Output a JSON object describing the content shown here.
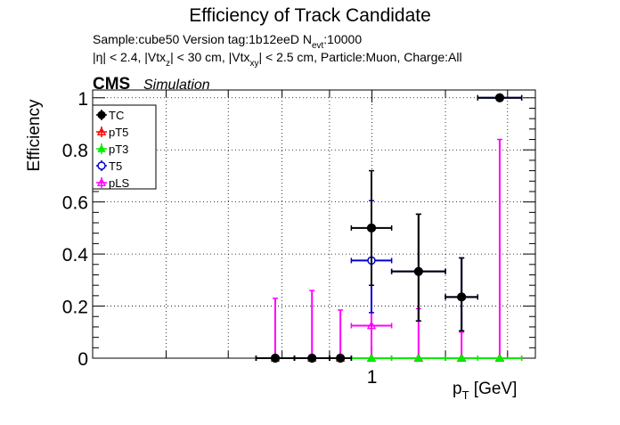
{
  "header": {
    "title": "Efficiency of Track Candidate",
    "line1_sample": "Sample:cube50   Version tag:1b12eeD  N",
    "line1_sub": "evt",
    "line1_tail": ":10000",
    "line2": [
      {
        "t": "|η| < 2.4, |Vtx",
        "sub": false
      },
      {
        "t": "z",
        "sub": true
      },
      {
        "t": "| < 30 cm, |Vtx",
        "sub": false
      },
      {
        "t": "xy",
        "sub": true
      },
      {
        "t": "| < 2.5 cm, Particle:Muon, Charge:All",
        "sub": false
      }
    ]
  },
  "cms": {
    "label": "CMS",
    "sublabel": "Simulation"
  },
  "chart_data": {
    "type": "scatter",
    "xlabel_main": "p",
    "xlabel_sub": "T",
    "xlabel_unit": " [GeV]",
    "ylabel": "Efficiency",
    "xscale": "log",
    "xlim": [
      0.5,
      1.5
    ],
    "ylim": [
      0,
      1.03
    ],
    "grid": true,
    "legend_position": "top-left",
    "y_ticks": [
      {
        "v": 0,
        "label": "0"
      },
      {
        "v": 0.2,
        "label": "0.2"
      },
      {
        "v": 0.4,
        "label": "0.4"
      },
      {
        "v": 0.6,
        "label": "0.6"
      },
      {
        "v": 0.8,
        "label": "0.8"
      },
      {
        "v": 1,
        "label": "1"
      }
    ],
    "x_tick_labels": [
      {
        "v": 1,
        "label": "1"
      }
    ],
    "x_edges": [
      0.75,
      0.825,
      0.9,
      0.95,
      1.05,
      1.2,
      1.3,
      1.45
    ],
    "series": [
      {
        "name": "TC",
        "color": "#000000",
        "marker": "filled-circle",
        "values": [
          0,
          0,
          0,
          0.5,
          0.333,
          0.235,
          1.0
        ],
        "err_up": [
          0,
          0,
          0,
          0.22,
          0.22,
          0.15,
          0
        ],
        "err_down": [
          0,
          0,
          0,
          0.22,
          0.19,
          0.13,
          0
        ]
      },
      {
        "name": "pT5",
        "color": "#ff0000",
        "marker": "open-triangle",
        "values": [
          0,
          0,
          0,
          0,
          0,
          0,
          0
        ],
        "err_up": [
          0,
          0,
          0,
          0,
          0,
          0,
          0
        ],
        "err_down": [
          0,
          0,
          0,
          0,
          0,
          0,
          0
        ]
      },
      {
        "name": "pT3",
        "color": "#00ee00",
        "marker": "filled-triangle",
        "values": [
          0,
          0,
          0,
          0,
          0,
          0,
          0
        ],
        "err_up": [
          0,
          0,
          0,
          0,
          0,
          0,
          0
        ],
        "err_down": [
          0,
          0,
          0,
          0,
          0,
          0,
          0
        ]
      },
      {
        "name": "T5",
        "color": "#0000cc",
        "marker": "open-circle",
        "values": [
          0,
          0,
          0,
          0.375,
          0.333,
          0.235,
          1.0
        ],
        "err_up": [
          0,
          0,
          0,
          0.23,
          0.22,
          0.15,
          0
        ],
        "err_down": [
          0,
          0,
          0,
          0.2,
          0.19,
          0.13,
          0
        ]
      },
      {
        "name": "pLS",
        "color": "#ff00ff",
        "marker": "open-triangle",
        "values": [
          0,
          0,
          0,
          0.125,
          0,
          0,
          0
        ],
        "err_up": [
          0.23,
          0.26,
          0.185,
          0.24,
          0.19,
          0.1,
          0.84
        ],
        "err_down": [
          0,
          0,
          0,
          0.125,
          0,
          0,
          0
        ]
      }
    ]
  }
}
